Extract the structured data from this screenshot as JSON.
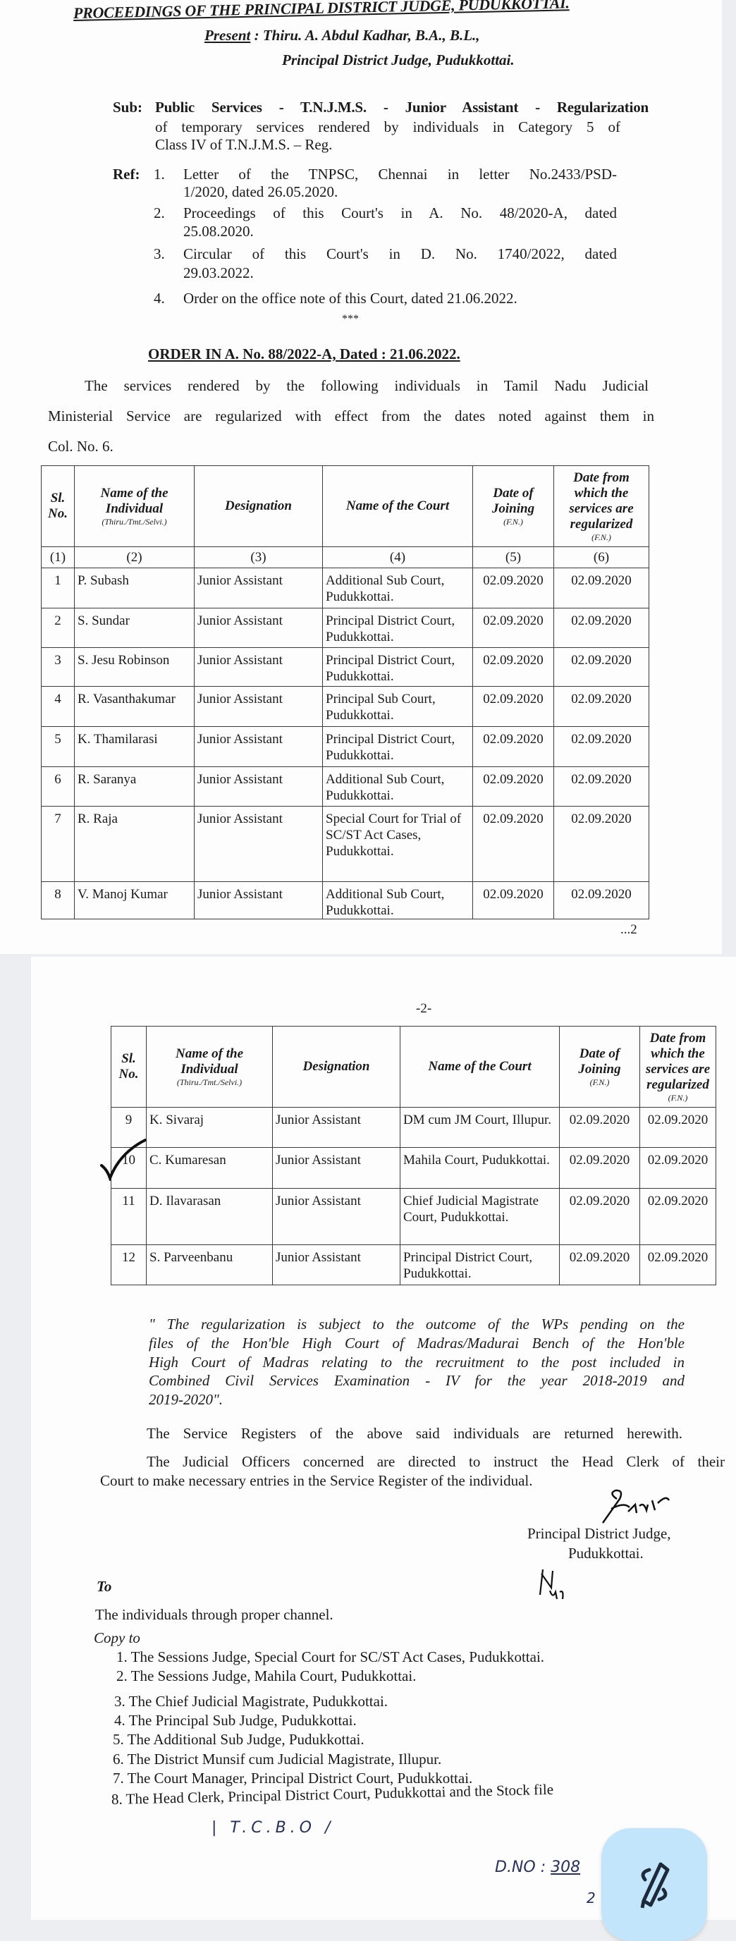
{
  "header": {
    "title": "PROCEEDINGS OF THE PRINCIPAL DISTRICT JUDGE, PUDUKKOTTAI.",
    "present_label": "Present",
    "present_name": "Thiru. A. Abdul Kadhar, B.A., B.L.,",
    "present_designation": "Principal District Judge, Pudukkottai."
  },
  "subject": {
    "label": "Sub:",
    "lines": [
      "Public Services - T.N.J.M.S. - Junior Assistant - Regularization",
      "of temporary services rendered by individuals in Category 5 of",
      "Class IV of T.N.J.M.S. – Reg."
    ]
  },
  "references": {
    "label": "Ref:",
    "items": [
      {
        "num": "1.",
        "lines": [
          "Letter of the TNPSC, Chennai in letter No.2433/PSD-",
          "1/2020, dated 26.05.2020."
        ]
      },
      {
        "num": "2.",
        "lines": [
          "Proceedings of this Court's in A. No. 48/2020-A, dated",
          "25.08.2020."
        ]
      },
      {
        "num": "3.",
        "lines": [
          "Circular of this Court's in D. No. 1740/2022, dated",
          "29.03.2022."
        ]
      },
      {
        "num": "4.",
        "lines": [
          "Order on the office note of this Court, dated 21.06.2022."
        ]
      }
    ],
    "separator": "***"
  },
  "order": {
    "heading": "ORDER IN A. No. 88/2022-A, Dated : 21.06.2022.",
    "para_lines": [
      "The services rendered by the following individuals in Tamil Nadu Judicial",
      "Ministerial Service are regularized with effect from the dates noted against them in",
      "Col. No. 6."
    ]
  },
  "table": {
    "headers": [
      {
        "label": "Sl. No.",
        "sub": ""
      },
      {
        "label": "Name of the Individual",
        "sub": "(Thiru./Tmt./Selvi.)"
      },
      {
        "label": "Designation",
        "sub": ""
      },
      {
        "label": "Name of the Court",
        "sub": ""
      },
      {
        "label": "Date of Joining",
        "sub": "(F.N.)"
      },
      {
        "label": "Date from which the services are regularized",
        "sub": "(F.N.)"
      }
    ],
    "column_numbers": [
      "(1)",
      "(2)",
      "(3)",
      "(4)",
      "(5)",
      "(6)"
    ],
    "page1_rows": [
      [
        "1",
        "P. Subash",
        "Junior Assistant",
        "Additional Sub Court, Pudukkottai.",
        "02.09.2020",
        "02.09.2020"
      ],
      [
        "2",
        "S. Sundar",
        "Junior Assistant",
        "Principal District Court, Pudukkottai.",
        "02.09.2020",
        "02.09.2020"
      ],
      [
        "3",
        "S. Jesu Robinson",
        "Junior Assistant",
        "Principal District Court, Pudukkottai.",
        "02.09.2020",
        "02.09.2020"
      ],
      [
        "4",
        "R. Vasanthakumar",
        "Junior Assistant",
        "Principal Sub Court, Pudukkottai.",
        "02.09.2020",
        "02.09.2020"
      ],
      [
        "5",
        "K. Thamilarasi",
        "Junior Assistant",
        "Principal District Court, Pudukkottai.",
        "02.09.2020",
        "02.09.2020"
      ],
      [
        "6",
        "R. Saranya",
        "Junior Assistant",
        "Additional Sub Court, Pudukkottai.",
        "02.09.2020",
        "02.09.2020"
      ],
      [
        "7",
        "R. Raja",
        "Junior Assistant",
        "Special Court for Trial of SC/ST Act Cases, Pudukkottai.",
        "02.09.2020",
        "02.09.2020"
      ],
      [
        "8",
        "V. Manoj Kumar",
        "Junior Assistant",
        "Additional Sub Court, Pudukkottai.",
        "02.09.2020",
        "02.09.2020"
      ]
    ],
    "continued": "...2",
    "page2_marker": "-2-",
    "page2_rows": [
      [
        "9",
        "K. Sivaraj",
        "Junior Assistant",
        "DM cum JM Court, Illupur.",
        "02.09.2020",
        "02.09.2020"
      ],
      [
        "10",
        "C. Kumaresan",
        "Junior Assistant",
        "Mahila Court, Pudukkottai.",
        "02.09.2020",
        "02.09.2020"
      ],
      [
        "11",
        "D. Ilavarasan",
        "Junior Assistant",
        "Chief Judicial Magistrate Court, Pudukkottai.",
        "02.09.2020",
        "02.09.2020"
      ],
      [
        "12",
        "S. Parveenbanu",
        "Junior Assistant",
        "Principal District Court, Pudukkottai.",
        "02.09.2020",
        "02.09.2020"
      ]
    ]
  },
  "condition": {
    "lines": [
      "\" The regularization is subject to the outcome of the WPs pending on the",
      "files of the Hon'ble High Court of Madras/Madurai Bench of the Hon'ble",
      "High Court of Madras relating to the recruitment to the post included in",
      "Combined Civil Services Examination - IV for the year 2018-2019 and",
      "2019-2020\"."
    ]
  },
  "body": {
    "registers": "The Service Registers of the above said individuals are returned herewith.",
    "officers_line1": "The Judicial Officers concerned are directed to instruct the Head Clerk of their",
    "officers_line2": "Court to make necessary entries in the Service Register of the individual."
  },
  "signature": {
    "designation": "Principal District Judge,",
    "place": "Pudukkottai."
  },
  "distribution": {
    "to_label": "To",
    "to_text": "The individuals through proper channel.",
    "copy_label": "Copy to",
    "copies": [
      "1. The Sessions Judge, Special Court for SC/ST Act Cases, Pudukkottai.",
      "2. The Sessions Judge, Mahila Court, Pudukkottai.",
      "3. The Chief Judicial Magistrate, Pudukkottai.",
      "4. The Principal Sub Judge, Pudukkottai.",
      "5. The Additional Sub Judge, Pudukkottai.",
      "6. The District Munsif cum Judicial Magistrate, Illupur.",
      "7. The Court Manager, Principal District Court, Pudukkottai.",
      "8. The Head Clerk, Principal District Court, Pudukkottai and the Stock file"
    ]
  },
  "handwriting": {
    "note": "T.C.B.O",
    "dno_label": "D.NO :",
    "dno_value": "308",
    "dno_denominator": "2"
  },
  "fab": {
    "icon": "pen-edit-icon",
    "color": "#c3e5fb"
  }
}
